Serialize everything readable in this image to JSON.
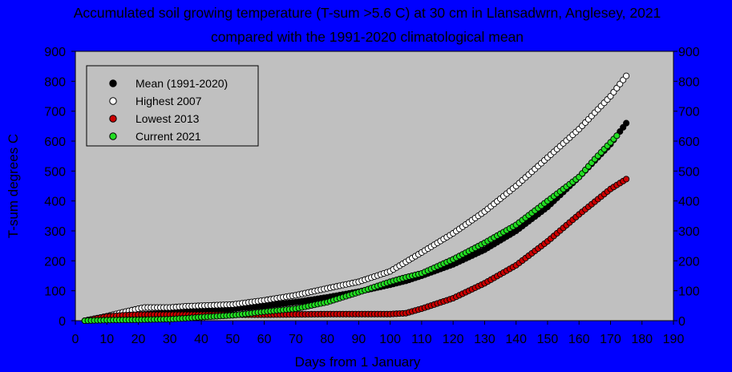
{
  "colors": {
    "background": "#0000ff",
    "plot_area": "#c0c0c0",
    "legend_bg": "#c0c0c0",
    "mean": "#000000",
    "highest": "#ffffff",
    "lowest": "#cc0000",
    "current": "#22dd22"
  },
  "chart_data": {
    "type": "scatter",
    "title": "Accumulated soil growing temperature (T-sum >5.6 C) at 30 cm in Llansadwrn, Anglesey, 2021",
    "subtitle": "compared with the 1991-2020 climatological mean",
    "xlabel": "Days from 1 January",
    "ylabel": "T-sum degrees C",
    "xlim": [
      0,
      190
    ],
    "ylim": [
      0,
      900
    ],
    "x_ticks": [
      0,
      10,
      20,
      30,
      40,
      50,
      60,
      70,
      80,
      90,
      100,
      110,
      120,
      130,
      140,
      150,
      160,
      170,
      180,
      190
    ],
    "y_ticks": [
      0,
      100,
      200,
      300,
      400,
      500,
      600,
      700,
      800,
      900
    ],
    "grid": false,
    "legend_position": "top-left",
    "series": [
      {
        "name": "Mean (1991-2020)",
        "key": "mean",
        "x_start": 3,
        "x_end": 175,
        "anchors": [
          [
            3,
            0
          ],
          [
            10,
            12
          ],
          [
            20,
            20
          ],
          [
            30,
            26
          ],
          [
            40,
            32
          ],
          [
            50,
            40
          ],
          [
            60,
            50
          ],
          [
            70,
            62
          ],
          [
            80,
            78
          ],
          [
            90,
            97
          ],
          [
            100,
            120
          ],
          [
            105,
            133
          ],
          [
            110,
            150
          ],
          [
            120,
            188
          ],
          [
            130,
            237
          ],
          [
            140,
            300
          ],
          [
            150,
            380
          ],
          [
            160,
            480
          ],
          [
            170,
            590
          ],
          [
            175,
            660
          ]
        ]
      },
      {
        "name": "Highest 2007",
        "key": "highest",
        "x_start": 3,
        "x_end": 175,
        "anchors": [
          [
            3,
            0
          ],
          [
            10,
            15
          ],
          [
            15,
            28
          ],
          [
            20,
            40
          ],
          [
            22,
            44
          ],
          [
            30,
            44
          ],
          [
            35,
            48
          ],
          [
            40,
            50
          ],
          [
            50,
            54
          ],
          [
            60,
            68
          ],
          [
            70,
            85
          ],
          [
            80,
            108
          ],
          [
            90,
            130
          ],
          [
            100,
            165
          ],
          [
            110,
            228
          ],
          [
            120,
            292
          ],
          [
            130,
            365
          ],
          [
            140,
            450
          ],
          [
            150,
            545
          ],
          [
            160,
            640
          ],
          [
            170,
            750
          ],
          [
            175,
            818
          ]
        ]
      },
      {
        "name": "Lowest 2013",
        "key": "lowest",
        "x_start": 3,
        "x_end": 175,
        "anchors": [
          [
            3,
            0
          ],
          [
            10,
            14
          ],
          [
            15,
            18
          ],
          [
            20,
            20
          ],
          [
            40,
            20
          ],
          [
            60,
            20
          ],
          [
            80,
            22
          ],
          [
            90,
            22
          ],
          [
            100,
            22
          ],
          [
            105,
            25
          ],
          [
            110,
            40
          ],
          [
            120,
            75
          ],
          [
            130,
            125
          ],
          [
            140,
            185
          ],
          [
            150,
            265
          ],
          [
            160,
            355
          ],
          [
            170,
            440
          ],
          [
            175,
            473
          ]
        ]
      },
      {
        "name": "Current 2021",
        "key": "current",
        "x_start": 3,
        "x_end": 172,
        "anchors": [
          [
            3,
            0
          ],
          [
            10,
            2
          ],
          [
            20,
            3
          ],
          [
            30,
            5
          ],
          [
            35,
            8
          ],
          [
            40,
            12
          ],
          [
            50,
            18
          ],
          [
            60,
            30
          ],
          [
            70,
            40
          ],
          [
            80,
            62
          ],
          [
            90,
            95
          ],
          [
            100,
            130
          ],
          [
            105,
            145
          ],
          [
            110,
            158
          ],
          [
            120,
            205
          ],
          [
            130,
            260
          ],
          [
            140,
            320
          ],
          [
            150,
            400
          ],
          [
            160,
            480
          ],
          [
            165,
            540
          ],
          [
            172,
            618
          ]
        ]
      }
    ]
  }
}
